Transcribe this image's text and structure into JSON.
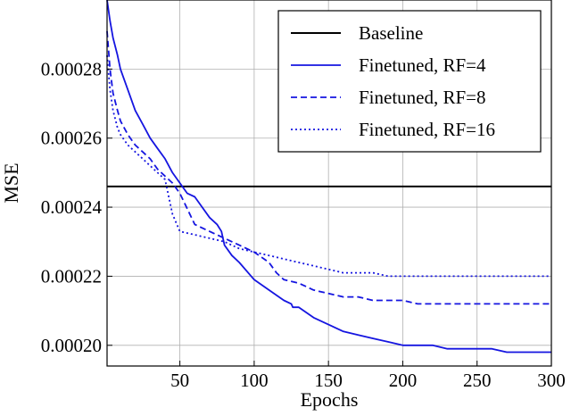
{
  "chart_data": {
    "type": "line",
    "title": "",
    "xlabel": "Epochs",
    "ylabel": "MSE",
    "xlim": [
      1,
      300
    ],
    "ylim": [
      0.000194,
      0.0003
    ],
    "xticks": [
      50,
      100,
      150,
      200,
      250,
      300
    ],
    "yticks": [
      0.0002,
      0.00022,
      0.00024,
      0.00026,
      0.00028
    ],
    "ytick_labels": [
      "0.00020",
      "0.00022",
      "0.00024",
      "0.00026",
      "0.00028"
    ],
    "grid": true,
    "legend_position": "top-right",
    "series": [
      {
        "name": "Baseline",
        "color": "#000000",
        "dash": "solid",
        "x": [
          1,
          300
        ],
        "y": [
          0.000246,
          0.000246
        ]
      },
      {
        "name": "Finetuned, RF=4",
        "color": "#1515e0",
        "dash": "solid",
        "x": [
          1,
          3,
          5,
          8,
          10,
          15,
          20,
          25,
          30,
          35,
          40,
          45,
          50,
          55,
          60,
          65,
          70,
          75,
          78,
          80,
          85,
          90,
          100,
          110,
          120,
          125,
          126,
          130,
          140,
          150,
          160,
          170,
          180,
          190,
          200,
          210,
          220,
          230,
          240,
          250,
          260,
          270,
          280,
          290,
          300
        ],
        "y": [
          0.0003,
          0.000294,
          0.000289,
          0.000284,
          0.00028,
          0.000274,
          0.000268,
          0.000264,
          0.00026,
          0.000257,
          0.000254,
          0.00025,
          0.000247,
          0.000244,
          0.000243,
          0.00024,
          0.000237,
          0.000235,
          0.000233,
          0.000229,
          0.000226,
          0.000224,
          0.000219,
          0.000216,
          0.000213,
          0.000212,
          0.000211,
          0.000211,
          0.000208,
          0.000206,
          0.000204,
          0.000203,
          0.000202,
          0.000201,
          0.0002,
          0.0002,
          0.0002,
          0.000199,
          0.000199,
          0.000199,
          0.000199,
          0.000198,
          0.000198,
          0.000198,
          0.000198
        ]
      },
      {
        "name": "Finetuned, RF=8",
        "color": "#1515e0",
        "dash": "dashed",
        "x": [
          1,
          3,
          5,
          8,
          10,
          15,
          20,
          25,
          30,
          35,
          40,
          45,
          50,
          60,
          70,
          80,
          90,
          100,
          110,
          115,
          120,
          130,
          140,
          150,
          160,
          170,
          180,
          190,
          200,
          210,
          220,
          230,
          240,
          250,
          260,
          270,
          280,
          290,
          300
        ],
        "y": [
          0.000291,
          0.00028,
          0.000273,
          0.000268,
          0.000265,
          0.000261,
          0.000258,
          0.000256,
          0.000254,
          0.000251,
          0.000249,
          0.000247,
          0.000244,
          0.000235,
          0.000233,
          0.000231,
          0.000229,
          0.000227,
          0.000224,
          0.000221,
          0.000219,
          0.000218,
          0.000216,
          0.000215,
          0.000214,
          0.000214,
          0.000213,
          0.000213,
          0.000213,
          0.000212,
          0.000212,
          0.000212,
          0.000212,
          0.000212,
          0.000212,
          0.000212,
          0.000212,
          0.000212,
          0.000212
        ]
      },
      {
        "name": "Finetuned, RF=16",
        "color": "#1515e0",
        "dash": "dotted",
        "x": [
          1,
          3,
          5,
          8,
          10,
          15,
          20,
          25,
          30,
          35,
          40,
          45,
          50,
          60,
          70,
          80,
          90,
          100,
          110,
          120,
          130,
          140,
          150,
          160,
          170,
          180,
          190,
          200,
          210,
          220,
          230,
          240,
          250,
          260,
          270,
          280,
          290,
          300
        ],
        "y": [
          0.000284,
          0.000274,
          0.000268,
          0.000263,
          0.000261,
          0.000258,
          0.000256,
          0.000254,
          0.000252,
          0.00025,
          0.000248,
          0.000238,
          0.000233,
          0.000232,
          0.000231,
          0.00023,
          0.000228,
          0.000227,
          0.000226,
          0.000225,
          0.000224,
          0.000223,
          0.000222,
          0.000221,
          0.000221,
          0.000221,
          0.00022,
          0.00022,
          0.00022,
          0.00022,
          0.00022,
          0.00022,
          0.00022,
          0.00022,
          0.00022,
          0.00022,
          0.00022,
          0.00022
        ]
      }
    ]
  }
}
